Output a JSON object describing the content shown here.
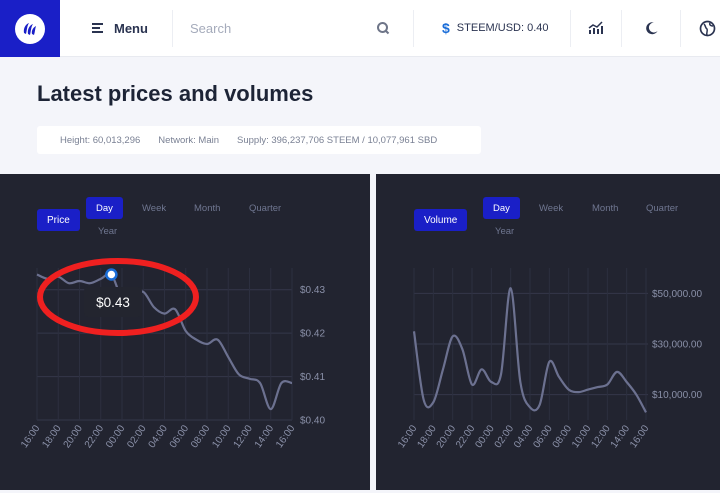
{
  "header": {
    "menu_label": "Menu",
    "search_placeholder": "Search",
    "ticker_symbol": "$",
    "ticker_label": "STEEM/USD: 0.40"
  },
  "page": {
    "title": "Latest prices and volumes",
    "stats": {
      "height": "Height: 60,013,296",
      "network": "Network: Main",
      "supply": "Supply: 396,237,706 STEEM / 10,077,961 SBD"
    }
  },
  "colors": {
    "brand": "#1a1fc7",
    "panel_bg": "#222430",
    "line": "#6c7190",
    "annotation": "#ef2020"
  },
  "price_panel": {
    "metric_label": "Price",
    "tabs": [
      "Day",
      "Week",
      "Month",
      "Quarter",
      "Year"
    ],
    "active_tab": "Day",
    "tooltip": "$0.43"
  },
  "volume_panel": {
    "metric_label": "Volume",
    "tabs": [
      "Day",
      "Week",
      "Month",
      "Quarter",
      "Year"
    ],
    "active_tab": "Day"
  },
  "chart_data": [
    {
      "type": "line",
      "name": "price",
      "x": [
        "16:00",
        "17:00",
        "18:00",
        "19:00",
        "20:00",
        "21:00",
        "22:00",
        "23:00",
        "00:00",
        "01:00",
        "02:00",
        "03:00",
        "04:00",
        "05:00",
        "06:00",
        "07:00",
        "08:00",
        "09:00",
        "10:00",
        "11:00",
        "12:00",
        "13:00",
        "14:00",
        "15:00",
        "16:00"
      ],
      "x_tick_labels": [
        "16:00",
        "18:00",
        "20:00",
        "22:00",
        "00:00",
        "02:00",
        "04:00",
        "06:00",
        "08:00",
        "10:00",
        "12:00",
        "14:00",
        "16:00"
      ],
      "values": [
        0.4335,
        0.4325,
        0.433,
        0.4315,
        0.432,
        0.4315,
        0.4325,
        0.4335,
        0.428,
        0.4285,
        0.4295,
        0.426,
        0.4245,
        0.4255,
        0.4205,
        0.4185,
        0.4175,
        0.4185,
        0.4145,
        0.4105,
        0.4095,
        0.4085,
        0.4025,
        0.4085,
        0.4085
      ],
      "ylim": [
        0.4,
        0.435
      ],
      "y_ticks": [
        0.4,
        0.41,
        0.42,
        0.43
      ],
      "y_tick_labels": [
        "$0.40",
        "$0.41",
        "$0.42",
        "$0.43"
      ],
      "highlight_index": 7,
      "grid": true
    },
    {
      "type": "line",
      "name": "volume",
      "x": [
        "16:00",
        "17:00",
        "18:00",
        "19:00",
        "20:00",
        "21:00",
        "22:00",
        "23:00",
        "00:00",
        "01:00",
        "02:00",
        "03:00",
        "04:00",
        "05:00",
        "06:00",
        "07:00",
        "08:00",
        "09:00",
        "10:00",
        "11:00",
        "12:00",
        "13:00",
        "14:00",
        "15:00",
        "16:00"
      ],
      "x_tick_labels": [
        "16:00",
        "18:00",
        "20:00",
        "22:00",
        "00:00",
        "02:00",
        "04:00",
        "06:00",
        "08:00",
        "10:00",
        "12:00",
        "14:00",
        "16:00"
      ],
      "values": [
        35000,
        8000,
        7000,
        20000,
        33000,
        28000,
        14000,
        20000,
        15000,
        18000,
        52000,
        15000,
        5000,
        6000,
        23000,
        17000,
        12000,
        11000,
        12000,
        13000,
        14000,
        19000,
        15000,
        10000,
        3000
      ],
      "ylim": [
        0,
        60000
      ],
      "y_ticks": [
        10000,
        30000,
        50000
      ],
      "y_tick_labels": [
        "$10,000.00",
        "$30,000.00",
        "$50,000.00"
      ],
      "grid": true
    }
  ]
}
